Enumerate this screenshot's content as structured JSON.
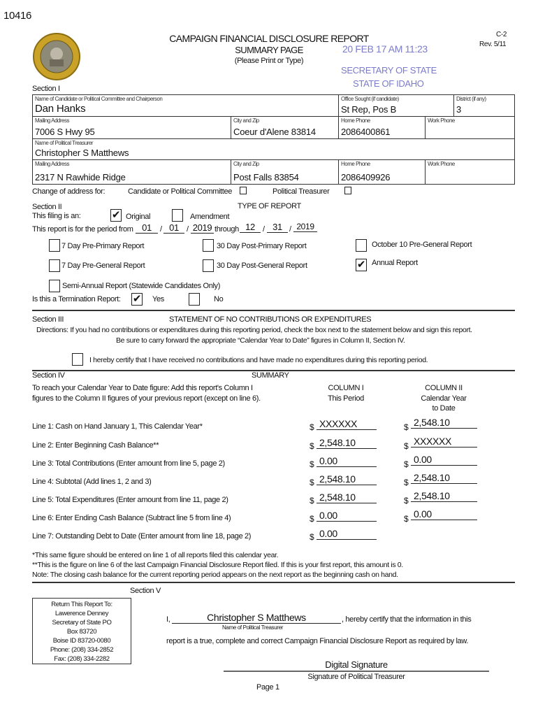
{
  "doc_id": "10416",
  "header": {
    "title": "CAMPAIGN FINANCIAL DISCLOSURE REPORT",
    "subtitle": "SUMMARY PAGE",
    "instruction": "(Please Print or Type)",
    "form_code": "C-2",
    "revision": "Rev. 5/11",
    "stamp_date": "20 FEB 17  AM 11:23",
    "stamp_office": "SECRETARY OF STATE",
    "stamp_state": "STATE OF IDAHO",
    "seal_text": "GREAT SEAL OF THE STATE OF IDAHO",
    "stamp_color": "#7b7bcc"
  },
  "section1": {
    "label": "Section I",
    "name_label": "Name of Candidate or Political Committee and Chairperson",
    "name": "Dan Hanks",
    "office_label": "Office Sought (if candidate)",
    "office": "St Rep, Pos B",
    "district_label": "District (if any)",
    "district": "3",
    "mailing_label": "Mailing Address",
    "mailing": "7006 S Hwy 95",
    "city_label": "City and Zip",
    "city": "Coeur d'Alene 83814",
    "home_label": "Home Phone",
    "home": "2086400861",
    "work_label": "Work Phone",
    "work": "",
    "treasurer_label": "Name of Political Treasurer",
    "treasurer": "Christopher S Matthews",
    "t_mailing": "2317 N Rawhide Ridge",
    "t_city": "Post Falls 83854",
    "t_home": "2086409926",
    "t_work": "",
    "change_label": "Change of address for:",
    "change_candidate": "Candidate or Political Committee",
    "change_treasurer": "Political Treasurer"
  },
  "section2": {
    "label": "Section II",
    "heading": "TYPE OF REPORT",
    "filing_label": "This filing is an:",
    "original": "Original",
    "amendment": "Amendment",
    "original_checked": true,
    "amendment_checked": false,
    "period_label": "This report is for the period from",
    "from_m": "01",
    "from_d": "01",
    "from_y": "2019",
    "through": "through",
    "to_m": "12",
    "to_d": "31",
    "to_y": "2019",
    "types": [
      {
        "label": "7 Day Pre-Primary Report",
        "checked": false
      },
      {
        "label": "30 Day Post-Primary Report",
        "checked": false
      },
      {
        "label": "October 10 Pre-General Report",
        "checked": false
      },
      {
        "label": "7 Day Pre-General Report",
        "checked": false
      },
      {
        "label": "30 Day Post-General Report",
        "checked": false
      },
      {
        "label": "Annual Report",
        "checked": true
      },
      {
        "label": "Semi-Annual Report (Statewide Candidates Only)",
        "checked": false
      }
    ],
    "termination_label": "Is this a Termination Report:",
    "yes": "Yes",
    "no": "No",
    "termination": "Yes"
  },
  "section3": {
    "label": "Section III",
    "heading": "STATEMENT OF NO CONTRIBUTIONS OR EXPENDITURES",
    "directions": "Directions:  If you had no contributions or expenditures during this reporting period, check the box next to the statement below and sign this report.",
    "directions2": "Be sure to carry forward the appropriate “Calendar Year to Date” figures in Column II, Section IV.",
    "certify": "I hereby certify that I have received no contributions and have made no expenditures during this reporting period.",
    "checked": false
  },
  "section4": {
    "label": "Section IV",
    "heading": "SUMMARY",
    "intro1": "To reach your Calendar Year to Date figure:  Add this report's Column I",
    "intro2": "figures to the Column II figures of your previous report (except on line 6).",
    "col1a": "COLUMN I",
    "col1b": "This Period",
    "col2a": "COLUMN II",
    "col2b": "Calendar Year",
    "col2c": "to Date",
    "currency": "$",
    "lines": [
      {
        "label": "Line 1: Cash on Hand January 1, This Calendar Year*",
        "c1": "XXXXXX",
        "c2": "2,548.10"
      },
      {
        "label": "Line 2: Enter Beginning Cash Balance**",
        "c1": "2,548.10",
        "c2": "XXXXXX"
      },
      {
        "label": "Line 3: Total Contributions (Enter amount from line 5, page 2)",
        "c1": "0.00",
        "c2": "0.00"
      },
      {
        "label": "Line 4: Subtotal (Add lines 1, 2 and 3)",
        "c1": "2,548.10",
        "c2": "2,548.10"
      },
      {
        "label": "Line 5: Total Expenditures (Enter amount from line 11, page 2)",
        "c1": "2,548.10",
        "c2": "2,548.10"
      },
      {
        "label": "Line 6: Enter Ending Cash Balance (Subtract line 5 from line 4)",
        "c1": "0.00",
        "c2": "0.00"
      },
      {
        "label": "Line 7: Outstanding Debt to Date (Enter amount from line 18, page 2)",
        "c1": "0.00"
      }
    ],
    "note1": "*This same figure should be entered on line 1 of all reports filed this calendar year.",
    "note2": "**This is the figure on line 6 of the last Campaign Financial Disclosure Report filed. If this is your first report, this amount is 0.",
    "note3": "Note: The closing cash balance for the current reporting period appears on the next report as the beginning cash on hand."
  },
  "section5": {
    "label": "Section V",
    "return": [
      "Return This Report To:",
      "Lawerence Denney",
      "Secretary of State PO",
      "Box 83720",
      "Boise ID 83720-0080",
      "Phone: (208) 334-2852",
      "Fax: (208) 334-2282"
    ],
    "i": "I,",
    "treasurer": "Christopher S Matthews",
    "certify": ", hereby certify that the information in this",
    "name_caption": "Name of Political Treasurer",
    "certify2": "report is a true, complete and correct Campaign Financial Disclosure Report as required by law.",
    "signature": "Digital Signature",
    "signature_caption": "Signature of Political Treasurer"
  },
  "page": "Page 1"
}
